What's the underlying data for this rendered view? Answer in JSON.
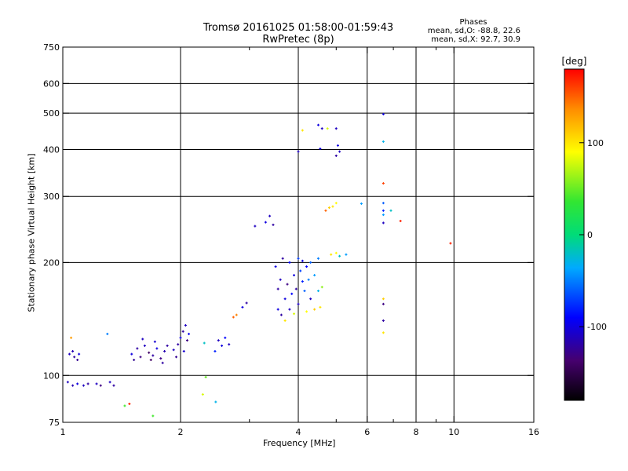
{
  "chart_data": {
    "type": "scatter",
    "title_line1": "Tromsø 20161025 01:58:00-01:59:43",
    "title_line2": "RwPretec (8p)",
    "xlabel": "Frequency [MHz]",
    "ylabel": "Stationary phase Virtual Height [km]",
    "x_scale": "log",
    "y_scale": "log",
    "xlim": [
      1,
      16
    ],
    "ylim": [
      75,
      750
    ],
    "x_ticks": [
      1,
      2,
      4,
      6,
      8,
      10,
      16
    ],
    "x_tick_labels": [
      "1",
      "2",
      "4",
      "6",
      "8",
      "10",
      "16"
    ],
    "x_minor_ticks": [
      3,
      5,
      7,
      9
    ],
    "y_ticks": [
      75,
      100,
      200,
      300,
      400,
      500,
      600,
      750
    ],
    "y_tick_labels": [
      "75",
      "100",
      "200",
      "300",
      "400",
      "500",
      "600",
      "750"
    ],
    "grid": true,
    "stats": {
      "heading": "Phases",
      "line_o": "mean, sd,O: -88.8, 22.6",
      "line_x": "mean, sd,X: 92.7, 30.9"
    },
    "colorbar": {
      "unit": "[deg]",
      "range": [
        -180,
        180
      ],
      "ticks": [
        100,
        0,
        -100
      ],
      "tick_labels": [
        "100",
        "0",
        "-100"
      ]
    },
    "points": [
      {
        "f": 1.05,
        "h": 126,
        "p": 130
      },
      {
        "f": 1.04,
        "h": 114,
        "p": -110
      },
      {
        "f": 1.07,
        "h": 112,
        "p": -120
      },
      {
        "f": 1.1,
        "h": 114,
        "p": -100
      },
      {
        "f": 1.06,
        "h": 116,
        "p": -115
      },
      {
        "f": 1.09,
        "h": 110,
        "p": -125
      },
      {
        "f": 1.03,
        "h": 96,
        "p": -110
      },
      {
        "f": 1.06,
        "h": 94,
        "p": -115
      },
      {
        "f": 1.09,
        "h": 95,
        "p": -100
      },
      {
        "f": 1.13,
        "h": 94,
        "p": -110
      },
      {
        "f": 1.16,
        "h": 95,
        "p": -120
      },
      {
        "f": 1.22,
        "h": 95,
        "p": -110
      },
      {
        "f": 1.25,
        "h": 94,
        "p": -130
      },
      {
        "f": 1.32,
        "h": 96,
        "p": -110
      },
      {
        "f": 1.35,
        "h": 94,
        "p": -120
      },
      {
        "f": 1.3,
        "h": 129,
        "p": -50
      },
      {
        "f": 1.44,
        "h": 83,
        "p": 40
      },
      {
        "f": 1.48,
        "h": 84,
        "p": 170
      },
      {
        "f": 1.5,
        "h": 114,
        "p": -100
      },
      {
        "f": 1.55,
        "h": 118,
        "p": -120
      },
      {
        "f": 1.58,
        "h": 112,
        "p": -130
      },
      {
        "f": 1.62,
        "h": 120,
        "p": -110
      },
      {
        "f": 1.66,
        "h": 115,
        "p": -140
      },
      {
        "f": 1.7,
        "h": 113,
        "p": -120
      },
      {
        "f": 1.74,
        "h": 118,
        "p": -100
      },
      {
        "f": 1.78,
        "h": 111,
        "p": -130
      },
      {
        "f": 1.82,
        "h": 116,
        "p": -115
      },
      {
        "f": 1.85,
        "h": 120,
        "p": -120
      },
      {
        "f": 1.6,
        "h": 125,
        "p": -110
      },
      {
        "f": 1.68,
        "h": 110,
        "p": -140
      },
      {
        "f": 1.52,
        "h": 110,
        "p": -125
      },
      {
        "f": 1.72,
        "h": 123,
        "p": -105
      },
      {
        "f": 1.8,
        "h": 108,
        "p": -120
      },
      {
        "f": 1.92,
        "h": 117,
        "p": -110
      },
      {
        "f": 1.97,
        "h": 121,
        "p": -120
      },
      {
        "f": 2.0,
        "h": 126,
        "p": -100
      },
      {
        "f": 2.03,
        "h": 131,
        "p": -120
      },
      {
        "f": 2.06,
        "h": 136,
        "p": -110
      },
      {
        "f": 2.08,
        "h": 124,
        "p": -130
      },
      {
        "f": 1.95,
        "h": 112,
        "p": -125
      },
      {
        "f": 2.04,
        "h": 116,
        "p": -105
      },
      {
        "f": 2.1,
        "h": 129,
        "p": -95
      },
      {
        "f": 1.7,
        "h": 78,
        "p": 40
      },
      {
        "f": 2.28,
        "h": 89,
        "p": 80
      },
      {
        "f": 2.32,
        "h": 99,
        "p": 50
      },
      {
        "f": 2.46,
        "h": 85,
        "p": -30
      },
      {
        "f": 2.3,
        "h": 122,
        "p": -20
      },
      {
        "f": 2.45,
        "h": 116,
        "p": -80
      },
      {
        "f": 2.5,
        "h": 124,
        "p": -110
      },
      {
        "f": 2.55,
        "h": 120,
        "p": -100
      },
      {
        "f": 2.6,
        "h": 126,
        "p": -90
      },
      {
        "f": 2.66,
        "h": 121,
        "p": -110
      },
      {
        "f": 2.73,
        "h": 143,
        "p": 150
      },
      {
        "f": 2.78,
        "h": 145,
        "p": 140
      },
      {
        "f": 2.88,
        "h": 152,
        "p": -100
      },
      {
        "f": 2.95,
        "h": 156,
        "p": -120
      },
      {
        "f": 3.1,
        "h": 250,
        "p": -110
      },
      {
        "f": 3.3,
        "h": 256,
        "p": -100
      },
      {
        "f": 3.38,
        "h": 266,
        "p": -110
      },
      {
        "f": 3.45,
        "h": 252,
        "p": -120
      },
      {
        "f": 3.55,
        "h": 170,
        "p": -120
      },
      {
        "f": 3.6,
        "h": 180,
        "p": -110
      },
      {
        "f": 3.7,
        "h": 160,
        "p": -100
      },
      {
        "f": 3.75,
        "h": 175,
        "p": -130
      },
      {
        "f": 3.8,
        "h": 150,
        "p": -110
      },
      {
        "f": 3.85,
        "h": 165,
        "p": -90
      },
      {
        "f": 3.9,
        "h": 185,
        "p": -100
      },
      {
        "f": 3.95,
        "h": 170,
        "p": -120
      },
      {
        "f": 4.0,
        "h": 155,
        "p": -110
      },
      {
        "f": 4.05,
        "h": 190,
        "p": -70
      },
      {
        "f": 4.1,
        "h": 178,
        "p": -80
      },
      {
        "f": 4.15,
        "h": 168,
        "p": -60
      },
      {
        "f": 4.2,
        "h": 195,
        "p": -90
      },
      {
        "f": 4.25,
        "h": 180,
        "p": -50
      },
      {
        "f": 4.3,
        "h": 160,
        "p": -110
      },
      {
        "f": 3.5,
        "h": 195,
        "p": -100
      },
      {
        "f": 3.65,
        "h": 205,
        "p": -120
      },
      {
        "f": 3.8,
        "h": 200,
        "p": -90
      },
      {
        "f": 4.0,
        "h": 205,
        "p": -70
      },
      {
        "f": 4.1,
        "h": 202,
        "p": -100
      },
      {
        "f": 4.3,
        "h": 200,
        "p": -60
      },
      {
        "f": 4.5,
        "h": 205,
        "p": -50
      },
      {
        "f": 4.4,
        "h": 185,
        "p": -40
      },
      {
        "f": 4.5,
        "h": 168,
        "p": -30
      },
      {
        "f": 4.6,
        "h": 172,
        "p": 60
      },
      {
        "f": 4.55,
        "h": 152,
        "p": 100
      },
      {
        "f": 4.4,
        "h": 150,
        "p": 110
      },
      {
        "f": 4.2,
        "h": 148,
        "p": 90
      },
      {
        "f": 3.9,
        "h": 146,
        "p": 80
      },
      {
        "f": 3.7,
        "h": 140,
        "p": 100
      },
      {
        "f": 3.55,
        "h": 150,
        "p": -100
      },
      {
        "f": 3.62,
        "h": 145,
        "p": -120
      },
      {
        "f": 4.0,
        "h": 395,
        "p": -110
      },
      {
        "f": 4.1,
        "h": 450,
        "p": 100
      },
      {
        "f": 4.5,
        "h": 465,
        "p": -100
      },
      {
        "f": 4.6,
        "h": 455,
        "p": -110
      },
      {
        "f": 4.75,
        "h": 455,
        "p": 80
      },
      {
        "f": 5.0,
        "h": 455,
        "p": -110
      },
      {
        "f": 5.05,
        "h": 410,
        "p": -100
      },
      {
        "f": 5.1,
        "h": 395,
        "p": -110
      },
      {
        "f": 5.0,
        "h": 385,
        "p": -120
      },
      {
        "f": 4.55,
        "h": 402,
        "p": -100
      },
      {
        "f": 4.7,
        "h": 275,
        "p": 150
      },
      {
        "f": 4.8,
        "h": 280,
        "p": 110
      },
      {
        "f": 4.9,
        "h": 282,
        "p": 100
      },
      {
        "f": 5.0,
        "h": 288,
        "p": 90
      },
      {
        "f": 4.85,
        "h": 210,
        "p": 100
      },
      {
        "f": 5.0,
        "h": 212,
        "p": 90
      },
      {
        "f": 5.1,
        "h": 208,
        "p": -20
      },
      {
        "f": 5.3,
        "h": 210,
        "p": -40
      },
      {
        "f": 5.8,
        "h": 287,
        "p": -40
      },
      {
        "f": 6.6,
        "h": 497,
        "p": -100
      },
      {
        "f": 6.6,
        "h": 420,
        "p": -30
      },
      {
        "f": 6.6,
        "h": 325,
        "p": 160
      },
      {
        "f": 6.6,
        "h": 288,
        "p": -60
      },
      {
        "f": 6.6,
        "h": 275,
        "p": -80
      },
      {
        "f": 6.6,
        "h": 268,
        "p": -40
      },
      {
        "f": 6.6,
        "h": 255,
        "p": -110
      },
      {
        "f": 6.6,
        "h": 160,
        "p": 110
      },
      {
        "f": 6.6,
        "h": 155,
        "p": -130
      },
      {
        "f": 6.6,
        "h": 140,
        "p": -120
      },
      {
        "f": 6.6,
        "h": 130,
        "p": 100
      },
      {
        "f": 6.9,
        "h": 275,
        "p": -20
      },
      {
        "f": 7.3,
        "h": 258,
        "p": 170
      },
      {
        "f": 9.8,
        "h": 225,
        "p": 170
      }
    ]
  }
}
